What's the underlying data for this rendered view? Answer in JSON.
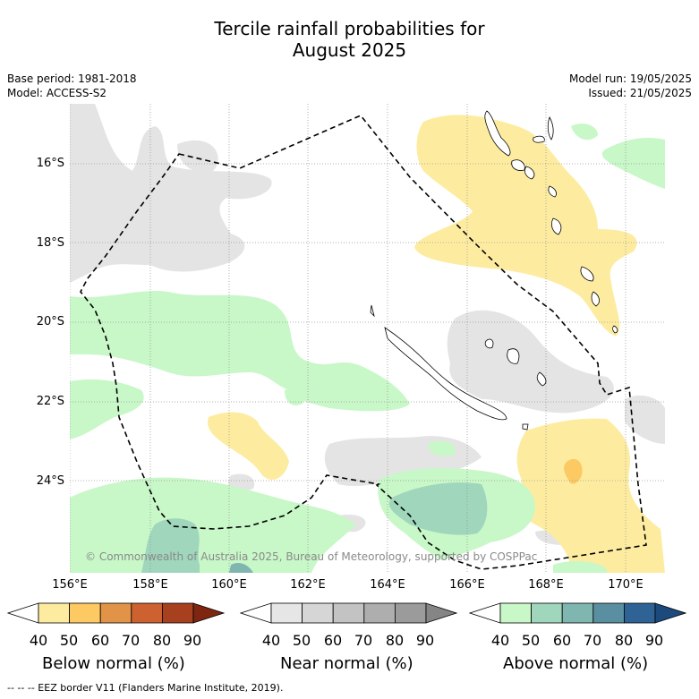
{
  "title_line1": "Tercile rainfall probabilities for",
  "title_line2": "August 2025",
  "meta_left": [
    "Base period: 1981-2018",
    "Model: ACCESS-S2"
  ],
  "meta_right": [
    "Model run: 19/05/2025",
    "Issued: 21/05/2025"
  ],
  "map": {
    "lat_labels": [
      "16°S",
      "18°S",
      "20°S",
      "22°S",
      "24°S"
    ],
    "lon_labels": [
      "156°E",
      "158°E",
      "160°E",
      "162°E",
      "164°E",
      "166°E",
      "168°E",
      "170°E"
    ],
    "copyright": "© Commonwealth of Australia 2025, Bureau of Meteorology, supported by COSPPac",
    "colors": {
      "border": "#000000",
      "grid": "#999999",
      "land_outline": "#000000"
    }
  },
  "legends": [
    {
      "title": "Below normal (%)",
      "ticks": [
        "40",
        "50",
        "60",
        "70",
        "80",
        "90"
      ],
      "colors": [
        "#ffffff",
        "#fdeca0",
        "#fdc963",
        "#e19447",
        "#cd6130",
        "#a7401e",
        "#7f2611"
      ]
    },
    {
      "title": "Near normal (%)",
      "ticks": [
        "40",
        "50",
        "60",
        "70",
        "80",
        "90"
      ],
      "colors": [
        "#ffffff",
        "#e6e6e6",
        "#d6d6d6",
        "#c3c3c3",
        "#aeaeae",
        "#9b9b9b",
        "#858585"
      ]
    },
    {
      "title": "Above normal (%)",
      "ticks": [
        "40",
        "50",
        "60",
        "70",
        "80",
        "90"
      ],
      "colors": [
        "#ffffff",
        "#c8f7c8",
        "#9fd6bc",
        "#80b6b0",
        "#5a8fa1",
        "#2f6395",
        "#1c4a7d"
      ]
    }
  ],
  "footnote": "-- -- -- EEZ border V11 (Flanders Marine Institute, 2019)."
}
